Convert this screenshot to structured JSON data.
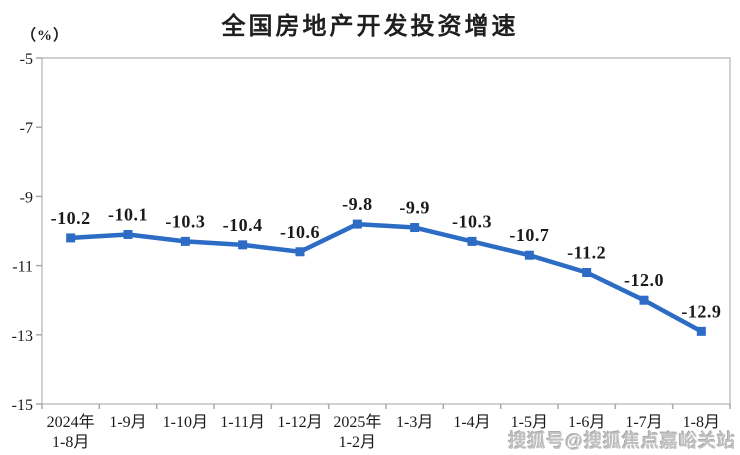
{
  "title": "全国房地产开发投资增速",
  "unit_label": "（%）",
  "watermark": "搜狐号@搜狐焦点嘉峪关站",
  "colors": {
    "line": "#2c6cc4",
    "title_text": "#1f1f1f",
    "axis_text": "#1a1a1a",
    "frame": "#c2c2c2",
    "tick": "#a8a8a8",
    "watermark": "#c0c0c0"
  },
  "chart_data": {
    "type": "line",
    "title": "全国房地产开发投资增速",
    "ylabel": "（%）",
    "categories": [
      "2024年\n1-8月",
      "1-9月",
      "1-10月",
      "1-11月",
      "1-12月",
      "2025年\n1-2月",
      "1-3月",
      "1-4月",
      "1-5月",
      "1-6月",
      "1-7月",
      "1-8月"
    ],
    "values": [
      -10.2,
      -10.1,
      -10.3,
      -10.4,
      -10.6,
      -9.8,
      -9.9,
      -10.3,
      -10.7,
      -11.2,
      -12.0,
      -12.9
    ],
    "data_labels": [
      "-10.2",
      "-10.1",
      "-10.3",
      "-10.4",
      "-10.6",
      "-9.8",
      "-9.9",
      "-10.3",
      "-10.7",
      "-11.2",
      "-12.0",
      "-12.9"
    ],
    "ylim": [
      -15,
      -5
    ],
    "yticks": [
      -5,
      -7,
      -9,
      -11,
      -13,
      -15
    ],
    "grid": false,
    "legend": "none",
    "marker": "square",
    "line_color": "#2c6cc4"
  }
}
